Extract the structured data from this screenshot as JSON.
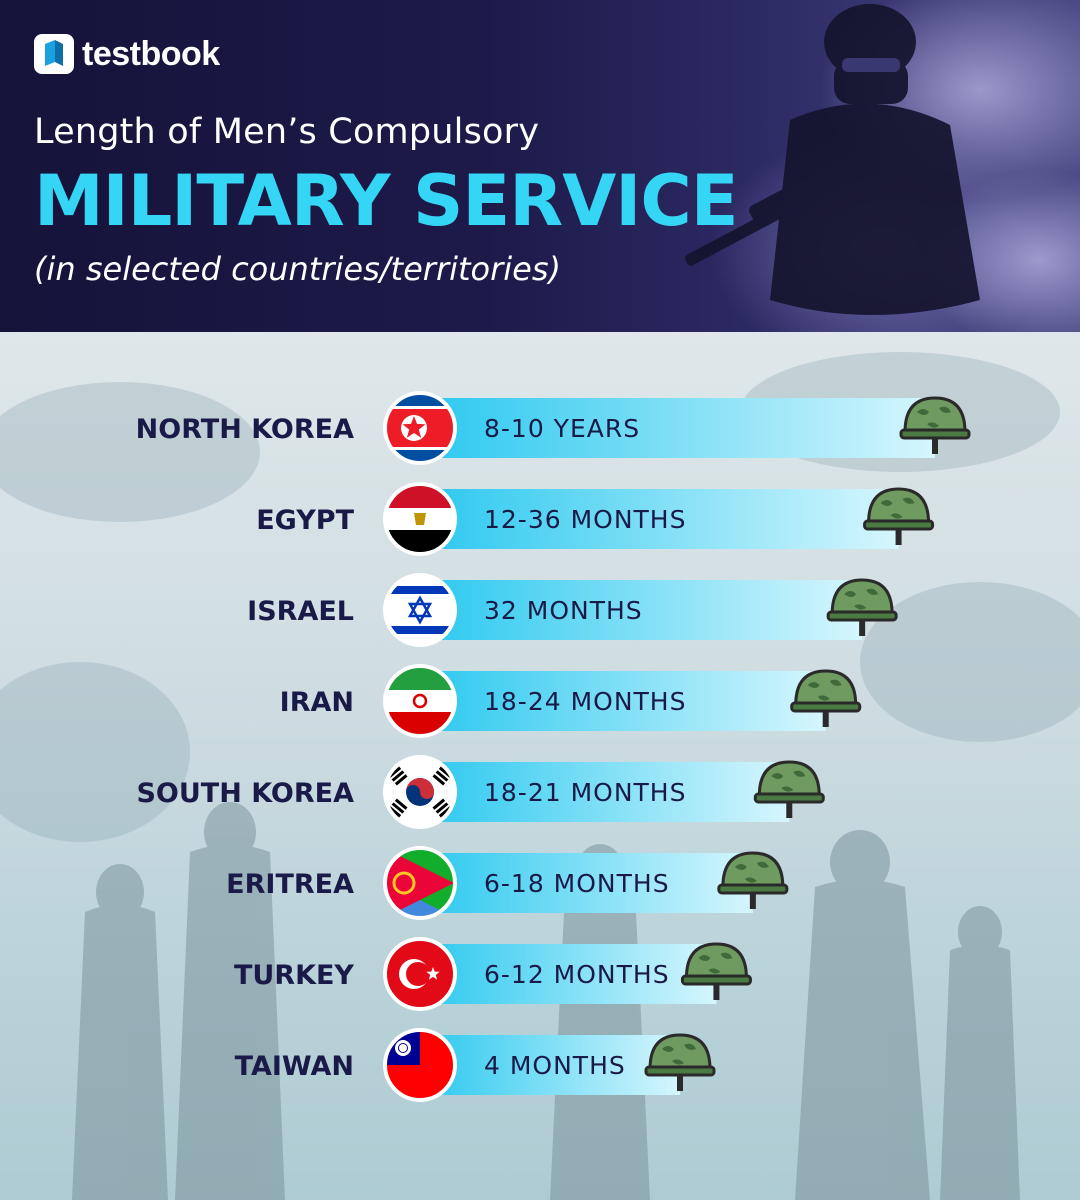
{
  "brand": {
    "name": "testbook"
  },
  "header": {
    "title_line1": "Length of Men’s Compulsory",
    "title_line2": "MILITARY SERVICE",
    "subtitle": "(in selected countries/territories)"
  },
  "colors": {
    "header_bg": "#1d1a4a",
    "accent": "#35d6f5",
    "bar_start": "#2bc8ef",
    "bar_end": "#d6f6fd",
    "label_text": "#1a1a48",
    "helmet": "#6f9a60"
  },
  "chart_data": {
    "type": "bar",
    "orientation": "horizontal",
    "categories": [
      "NORTH KOREA",
      "EGYPT",
      "ISRAEL",
      "IRAN",
      "SOUTH KOREA",
      "ERITREA",
      "TURKEY",
      "TAIWAN"
    ],
    "value_labels": [
      "8-10 YEARS",
      "12-36 MONTHS",
      "32 MONTHS",
      "18-24 MONTHS",
      "18-21 MONTHS",
      "6-18 MONTHS",
      "6-12 MONTHS",
      "4 MONTHS"
    ],
    "values": [
      8,
      7,
      6,
      5,
      4,
      3,
      2,
      1
    ],
    "flags": [
      "north-korea-flag",
      "egypt-flag",
      "israel-flag",
      "iran-flag",
      "south-korea-flag",
      "eritrea-flag",
      "turkey-flag",
      "taiwan-flag"
    ],
    "marker_icon": "army-helmet-icon",
    "title": "Length of Men’s Compulsory MILITARY SERVICE",
    "subtitle": "(in selected countries/territories)",
    "xlabel": "",
    "ylabel": "",
    "grid": false,
    "legend": "none"
  }
}
